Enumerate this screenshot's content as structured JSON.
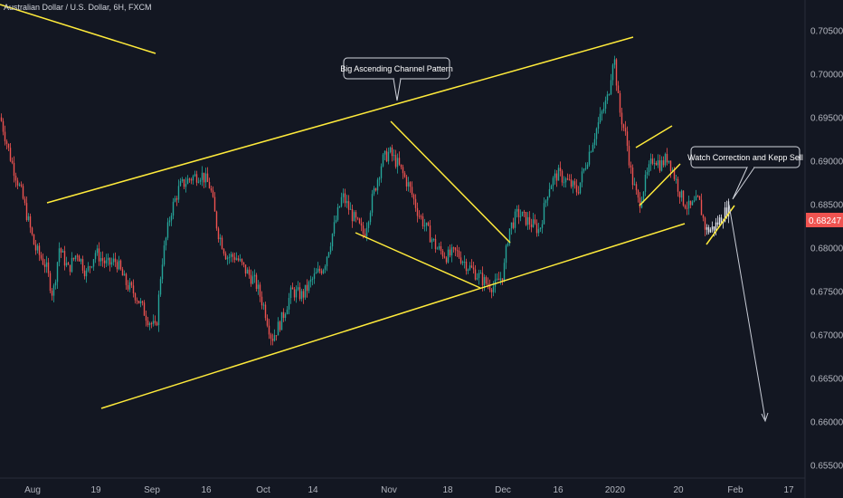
{
  "chart_data": {
    "type": "candlestick",
    "title": "Australian Dollar / U.S. Dollar, 6H, FXCM",
    "x_tick_labels": [
      "Aug",
      "19",
      "Sep",
      "16",
      "Oct",
      "14",
      "Nov",
      "18",
      "Dec",
      "16",
      "2020",
      "20",
      "Feb",
      "17"
    ],
    "y_tick_labels": [
      "0.70500",
      "0.70000",
      "0.69500",
      "0.69000",
      "0.68500",
      "0.68000",
      "0.67500",
      "0.67000",
      "0.66500",
      "0.66000",
      "0.65500"
    ],
    "ylim": [
      0.6535,
      0.7085
    ],
    "last_price": "0.68247",
    "colors": {
      "background": "#131722",
      "bull": "#26a69a",
      "bear": "#ef5350",
      "recent": "#e0e3eb",
      "trendline": "#ffeb3b",
      "price_tag": "#ef5350",
      "arrow": "#c8ccd6"
    },
    "annotations": [
      {
        "text": "Big Ascending Channel Pattern"
      },
      {
        "text": "Watch Correction and Kepp Sell"
      }
    ],
    "path_points": [
      [
        0,
        0.695
      ],
      [
        12,
        0.69
      ],
      [
        24,
        0.686
      ],
      [
        38,
        0.68
      ],
      [
        50,
        0.678
      ],
      [
        58,
        0.6745
      ],
      [
        65,
        0.68
      ],
      [
        75,
        0.6775
      ],
      [
        85,
        0.6795
      ],
      [
        95,
        0.677
      ],
      [
        105,
        0.6795
      ],
      [
        118,
        0.678
      ],
      [
        128,
        0.6785
      ],
      [
        138,
        0.676
      ],
      [
        150,
        0.6745
      ],
      [
        162,
        0.672
      ],
      [
        172,
        0.6705
      ],
      [
        178,
        0.678
      ],
      [
        188,
        0.684
      ],
      [
        198,
        0.687
      ],
      [
        210,
        0.688
      ],
      [
        222,
        0.6885
      ],
      [
        232,
        0.687
      ],
      [
        240,
        0.682
      ],
      [
        250,
        0.679
      ],
      [
        260,
        0.679
      ],
      [
        270,
        0.6775
      ],
      [
        282,
        0.676
      ],
      [
        292,
        0.673
      ],
      [
        300,
        0.6695
      ],
      [
        310,
        0.6715
      ],
      [
        322,
        0.675
      ],
      [
        334,
        0.6745
      ],
      [
        346,
        0.6765
      ],
      [
        358,
        0.678
      ],
      [
        368,
        0.682
      ],
      [
        378,
        0.686
      ],
      [
        390,
        0.6835
      ],
      [
        402,
        0.6815
      ],
      [
        412,
        0.686
      ],
      [
        422,
        0.69
      ],
      [
        430,
        0.691
      ],
      [
        440,
        0.6895
      ],
      [
        452,
        0.687
      ],
      [
        462,
        0.684
      ],
      [
        472,
        0.682
      ],
      [
        482,
        0.68
      ],
      [
        494,
        0.679
      ],
      [
        504,
        0.6795
      ],
      [
        516,
        0.678
      ],
      [
        526,
        0.677
      ],
      [
        536,
        0.676
      ],
      [
        546,
        0.6755
      ],
      [
        556,
        0.677
      ],
      [
        562,
        0.682
      ],
      [
        572,
        0.684
      ],
      [
        584,
        0.683
      ],
      [
        596,
        0.682
      ],
      [
        606,
        0.687
      ],
      [
        616,
        0.6885
      ],
      [
        628,
        0.6875
      ],
      [
        638,
        0.6865
      ],
      [
        648,
        0.69
      ],
      [
        660,
        0.694
      ],
      [
        672,
        0.6975
      ],
      [
        678,
        0.7025
      ],
      [
        684,
        0.696
      ],
      [
        692,
        0.6925
      ],
      [
        698,
        0.688
      ],
      [
        706,
        0.685
      ],
      [
        714,
        0.688
      ],
      [
        722,
        0.6905
      ],
      [
        730,
        0.6895
      ],
      [
        738,
        0.6905
      ],
      [
        746,
        0.688
      ],
      [
        754,
        0.6855
      ],
      [
        762,
        0.6845
      ],
      [
        772,
        0.6855
      ],
      [
        780,
        0.682
      ],
      [
        788,
        0.6822
      ],
      [
        796,
        0.6833
      ],
      [
        806,
        0.6848
      ]
    ]
  }
}
